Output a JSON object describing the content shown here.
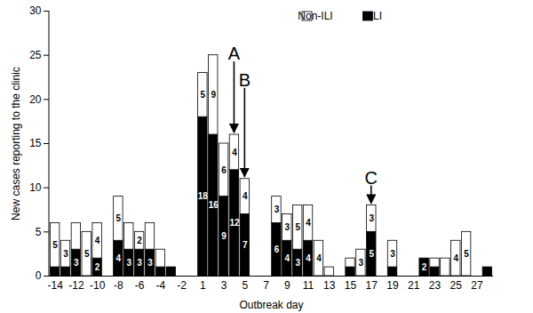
{
  "chart_data": {
    "type": "bar",
    "stacked": true,
    "data_labels": true,
    "x_label": "Outbreak day",
    "y_label": "New cases reporting to the clinic",
    "categories": [
      "-14",
      null,
      "-12",
      null,
      "-10",
      null,
      "-8",
      null,
      "-6",
      null,
      "-4",
      null,
      "-2",
      null,
      "1",
      null,
      "3",
      null,
      "5",
      null,
      "7",
      null,
      "9",
      null,
      "11",
      null,
      "13",
      null,
      "15",
      null,
      "17",
      null,
      "19",
      null,
      "21",
      null,
      "23",
      null,
      "25",
      null,
      "27",
      null
    ],
    "series": [
      {
        "name": "ILI",
        "color": "#000000",
        "values": [
          1,
          1,
          3,
          0,
          2,
          0,
          4,
          3,
          3,
          3,
          1,
          1,
          0,
          0,
          18,
          16,
          9,
          12,
          7,
          0,
          0,
          6,
          4,
          3,
          4,
          0,
          0,
          0,
          1,
          0,
          5,
          0,
          1,
          0,
          0,
          2,
          1,
          0,
          0,
          0,
          0,
          1
        ],
        "value_labels": [
          null,
          null,
          "3",
          null,
          "2",
          null,
          "4",
          "3",
          "3",
          "3",
          null,
          null,
          null,
          null,
          "18",
          "16",
          "9",
          "12",
          "7",
          null,
          null,
          "6",
          "4",
          "3",
          "4",
          null,
          null,
          null,
          null,
          null,
          "5",
          null,
          null,
          null,
          null,
          "2",
          null,
          null,
          null,
          null,
          null,
          null
        ]
      },
      {
        "name": "Non-ILI",
        "color": "#ffffff",
        "values": [
          5,
          3,
          3,
          5,
          4,
          0,
          5,
          3,
          2,
          3,
          2,
          0,
          0,
          0,
          5,
          9,
          6,
          4,
          4,
          0,
          0,
          3,
          3,
          5,
          4,
          4,
          1,
          0,
          1,
          3,
          3,
          0,
          3,
          0,
          0,
          0,
          1,
          2,
          4,
          5,
          0,
          0
        ],
        "value_labels": [
          "5",
          "3",
          null,
          "5",
          "4",
          null,
          "5",
          null,
          "2",
          null,
          null,
          null,
          null,
          null,
          "5",
          "9",
          "6",
          "4",
          "4",
          null,
          null,
          "3",
          "3",
          "5",
          "4",
          "4",
          null,
          null,
          null,
          "3",
          "3",
          null,
          "3",
          null,
          null,
          null,
          null,
          null,
          "4",
          "5",
          null,
          null
        ]
      }
    ],
    "ylim": [
      0,
      30
    ],
    "yticks": [
      0,
      5,
      10,
      15,
      20,
      25,
      30
    ],
    "legend": "top",
    "annotations": [
      {
        "text": "A",
        "category_index": 17
      },
      {
        "text": "B",
        "category_index": 18
      },
      {
        "text": "C",
        "category_index": 30
      }
    ]
  }
}
